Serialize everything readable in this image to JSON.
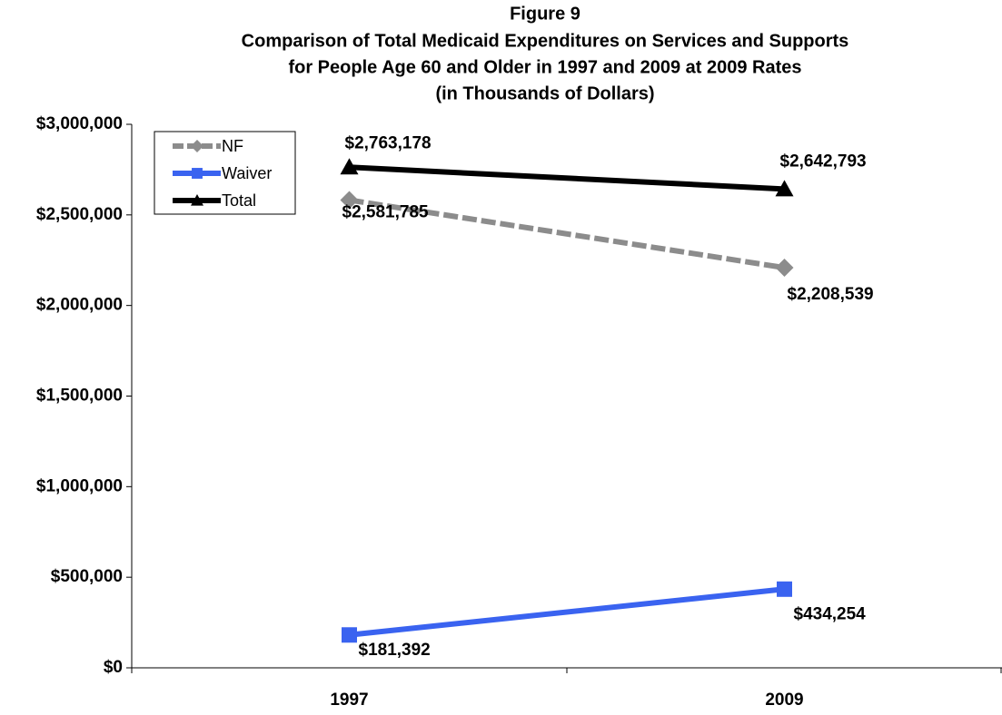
{
  "chart_data": {
    "type": "line",
    "title": [
      "Figure 9",
      "Comparison of Total Medicaid Expenditures on Services and Supports",
      "for People Age 60 and Older in 1997 and 2009 at 2009 Rates",
      "(in Thousands of Dollars)"
    ],
    "categories": [
      "1997",
      "2009"
    ],
    "series": [
      {
        "name": "NF",
        "color": "#8c8c8c",
        "marker": "diamond",
        "linestyle": "dashed",
        "values": [
          2581785,
          2208539
        ],
        "value_labels": [
          "$2,581,785",
          "$2,208,539"
        ]
      },
      {
        "name": "Waiver",
        "color": "#3a63f0",
        "marker": "square",
        "linestyle": "solid",
        "values": [
          181392,
          434254
        ],
        "value_labels": [
          "$181,392",
          "$434,254"
        ]
      },
      {
        "name": "Total",
        "color": "#000000",
        "marker": "triangle",
        "linestyle": "solid",
        "values": [
          2763178,
          2642793
        ],
        "value_labels": [
          "$2,763,178",
          "$2,642,793"
        ]
      }
    ],
    "ylim": [
      0,
      3000000
    ],
    "yticks": [
      {
        "value": 0,
        "label": "$0"
      },
      {
        "value": 500000,
        "label": "$500,000"
      },
      {
        "value": 1000000,
        "label": "$1,000,000"
      },
      {
        "value": 1500000,
        "label": "$1,500,000"
      },
      {
        "value": 2000000,
        "label": "$2,000,000"
      },
      {
        "value": 2500000,
        "label": "$2,500,000"
      },
      {
        "value": 3000000,
        "label": "$3,000,000"
      }
    ],
    "grid": false,
    "legend": "upper left"
  }
}
